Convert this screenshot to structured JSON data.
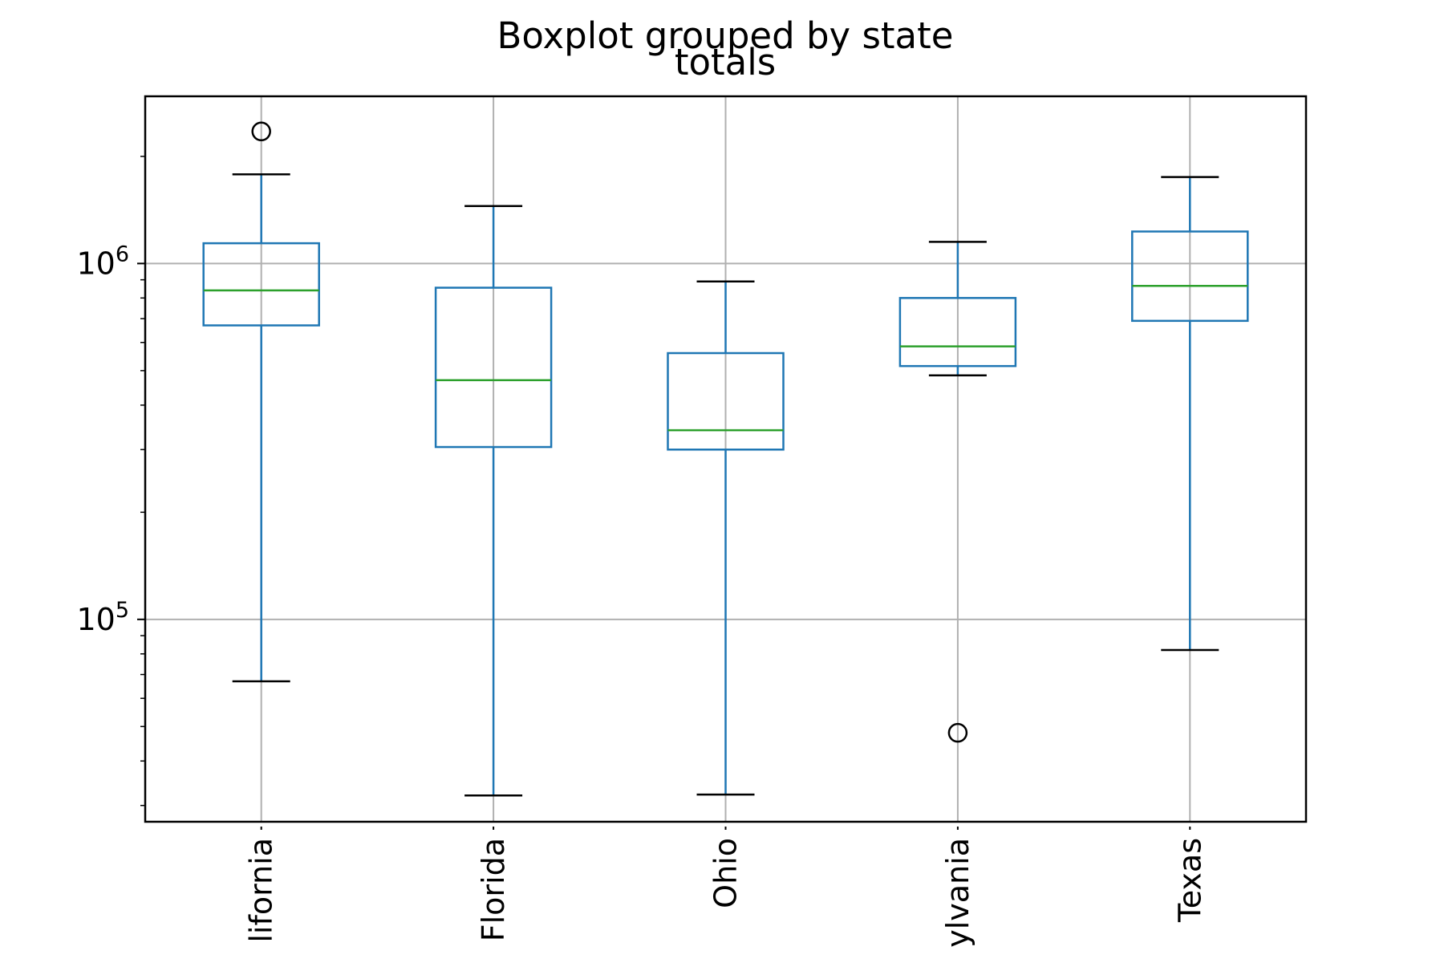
{
  "chart_data": {
    "type": "box",
    "suptitle": "Boxplot grouped by state",
    "title": "totals",
    "xlabel": "",
    "ylabel": "",
    "y_scale": "log",
    "ylim": [
      27000,
      2950000
    ],
    "y_ticks": [
      {
        "value": 100000,
        "base": "10",
        "exp": "5"
      },
      {
        "value": 1000000,
        "base": "10",
        "exp": "6"
      }
    ],
    "grid": true,
    "categories": [
      "California",
      "Florida",
      "Ohio",
      "Pennsylvania",
      "Texas"
    ],
    "category_tick_labels": [
      "lifornia",
      "Florida",
      "Ohio",
      "ylvania",
      "Texas"
    ],
    "boxes": [
      {
        "category": "California",
        "whisker_low": 67000,
        "q1": 670000,
        "median": 840000,
        "q3": 1140000,
        "whisker_high": 1780000,
        "outliers": [
          2350000
        ]
      },
      {
        "category": "Florida",
        "whisker_low": 32000,
        "q1": 305000,
        "median": 470000,
        "q3": 855000,
        "whisker_high": 1450000,
        "outliers": []
      },
      {
        "category": "Ohio",
        "whisker_low": 32200,
        "q1": 300000,
        "median": 340000,
        "q3": 560000,
        "whisker_high": 890000,
        "outliers": []
      },
      {
        "category": "Pennsylvania",
        "whisker_low": 485000,
        "q1": 515000,
        "median": 585000,
        "q3": 800000,
        "whisker_high": 1150000,
        "outliers": [
          48000
        ]
      },
      {
        "category": "Texas",
        "whisker_low": 82000,
        "q1": 690000,
        "median": 865000,
        "q3": 1230000,
        "whisker_high": 1750000,
        "outliers": []
      }
    ],
    "colors": {
      "box": "#1f77b4",
      "median": "#2ca02c",
      "whisker_cap": "#000000",
      "outlier": "#000000",
      "grid": "#b0b0b0",
      "axes": "#000000"
    }
  }
}
